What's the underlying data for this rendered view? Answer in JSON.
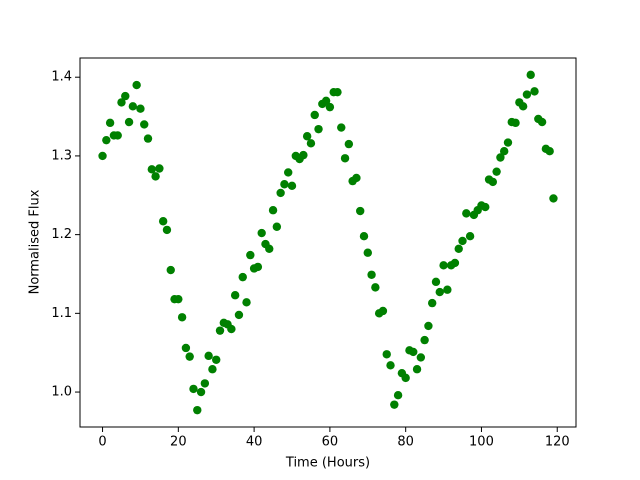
{
  "chart_data": {
    "type": "scatter",
    "x_label": "Time (Hours)",
    "y_label": "Normalised Flux",
    "color": "#008000",
    "x": [
      0,
      1,
      2,
      3,
      4,
      5,
      6,
      7,
      8,
      9,
      10,
      11,
      12,
      13,
      14,
      15,
      16,
      17,
      18,
      19,
      20,
      21,
      22,
      23,
      24,
      25,
      26,
      27,
      28,
      29,
      30,
      31,
      32,
      33,
      34,
      35,
      36,
      37,
      38,
      39,
      40,
      41,
      42,
      43,
      44,
      45,
      46,
      47,
      48,
      49,
      50,
      51,
      52,
      53,
      54,
      55,
      56,
      57,
      58,
      59,
      60,
      61,
      62,
      63,
      64,
      65,
      66,
      67,
      68,
      69,
      70,
      71,
      72,
      73,
      74,
      75,
      76,
      77,
      78,
      79,
      80,
      81,
      82,
      83,
      84,
      85,
      86,
      87,
      88,
      89,
      90,
      91,
      92,
      93,
      94,
      95,
      96,
      97,
      98,
      99,
      100,
      101,
      102,
      103,
      104,
      105,
      106,
      107,
      108,
      109,
      110,
      111,
      112,
      113,
      114,
      115,
      116,
      117,
      118,
      119
    ],
    "values": [
      1.3,
      1.32,
      1.342,
      1.326,
      1.326,
      1.368,
      1.376,
      1.343,
      1.363,
      1.39,
      1.36,
      1.34,
      1.322,
      1.283,
      1.274,
      1.284,
      1.217,
      1.206,
      1.155,
      1.118,
      1.118,
      1.095,
      1.056,
      1.045,
      1.004,
      0.977,
      1.0,
      1.011,
      1.046,
      1.029,
      1.041,
      1.078,
      1.088,
      1.086,
      1.08,
      1.123,
      1.098,
      1.146,
      1.114,
      1.174,
      1.157,
      1.159,
      1.202,
      1.188,
      1.182,
      1.231,
      1.21,
      1.253,
      1.264,
      1.279,
      1.262,
      1.3,
      1.296,
      1.301,
      1.325,
      1.316,
      1.352,
      1.334,
      1.366,
      1.37,
      1.362,
      1.381,
      1.381,
      1.336,
      1.297,
      1.315,
      1.268,
      1.272,
      1.23,
      1.198,
      1.177,
      1.149,
      1.133,
      1.1,
      1.103,
      1.048,
      1.034,
      0.984,
      0.996,
      1.024,
      1.018,
      1.053,
      1.051,
      1.029,
      1.044,
      1.066,
      1.084,
      1.113,
      1.14,
      1.127,
      1.161,
      1.13,
      1.161,
      1.164,
      1.182,
      1.192,
      1.227,
      1.198,
      1.225,
      1.231,
      1.237,
      1.235,
      1.27,
      1.267,
      1.28,
      1.298,
      1.306,
      1.317,
      1.343,
      1.342,
      1.368,
      1.363,
      1.378,
      1.403,
      1.382,
      1.347,
      1.343,
      1.309,
      1.306,
      1.246
    ],
    "xlim": [
      -5.95,
      124.95
    ],
    "ylim": [
      0.9556,
      1.4244
    ],
    "xticks": [
      0,
      20,
      40,
      60,
      80,
      100,
      120
    ],
    "yticks": [
      {
        "value": 1.0,
        "label": "1.0"
      },
      1.1,
      1.2,
      1.3,
      1.4
    ]
  }
}
